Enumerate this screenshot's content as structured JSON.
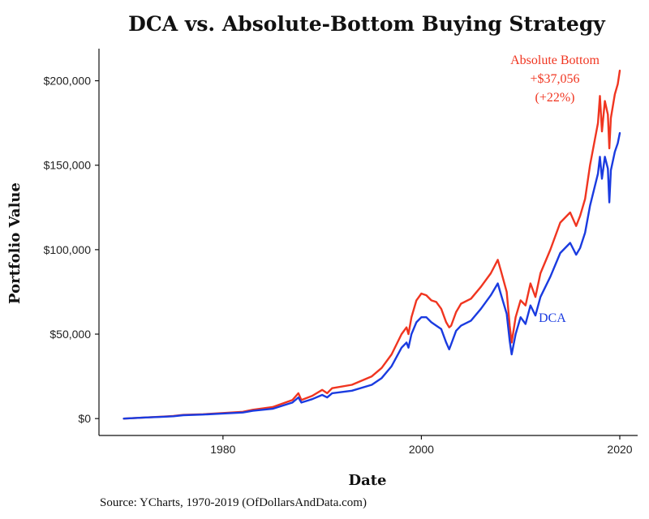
{
  "chart_data": {
    "type": "line",
    "title": "DCA vs. Absolute-Bottom Buying Strategy",
    "xlabel": "Date",
    "ylabel": "Portfolio Value",
    "source": "Source:  YCharts, 1970-2019 (OfDollarsAndData.com)",
    "xlim": [
      1967.5,
      2021.8
    ],
    "ylim": [
      -10000,
      219000
    ],
    "x_ticks": [
      {
        "value": 1980,
        "label": "1980"
      },
      {
        "value": 2000,
        "label": "2000"
      },
      {
        "value": 2020,
        "label": "2020"
      }
    ],
    "y_ticks": [
      {
        "value": 0,
        "label": "$0"
      },
      {
        "value": 50000,
        "label": "$50,000"
      },
      {
        "value": 100000,
        "label": "$100,000"
      },
      {
        "value": 150000,
        "label": "$150,000"
      },
      {
        "value": 200000,
        "label": "$200,000"
      }
    ],
    "grid": false,
    "legend": "none (direct line labels)",
    "annotations": [
      {
        "series": "Absolute Bottom",
        "lines": [
          "Absolute Bottom",
          "+$37,056",
          "(+22%)"
        ],
        "anchor": "top-right near line end"
      },
      {
        "series": "DCA",
        "lines": [
          "DCA"
        ],
        "anchor": "right of line near 2014"
      }
    ],
    "series": [
      {
        "name": "Absolute Bottom",
        "color": "#f03520",
        "points": [
          [
            1970.0,
            0
          ],
          [
            1972.0,
            600
          ],
          [
            1974.0,
            1200
          ],
          [
            1975.0,
            1500
          ],
          [
            1976.0,
            2200
          ],
          [
            1978.0,
            2600
          ],
          [
            1980.0,
            3300
          ],
          [
            1982.0,
            4000
          ],
          [
            1983.0,
            5200
          ],
          [
            1985.0,
            6800
          ],
          [
            1987.0,
            11000
          ],
          [
            1987.6,
            15000
          ],
          [
            1987.9,
            11000
          ],
          [
            1989.0,
            13500
          ],
          [
            1990.0,
            17000
          ],
          [
            1990.5,
            15000
          ],
          [
            1991.0,
            18000
          ],
          [
            1993.0,
            20000
          ],
          [
            1995.0,
            25000
          ],
          [
            1996.0,
            30000
          ],
          [
            1997.0,
            38000
          ],
          [
            1998.0,
            50000
          ],
          [
            1998.5,
            54000
          ],
          [
            1998.7,
            50000
          ],
          [
            1999.0,
            60000
          ],
          [
            1999.5,
            70000
          ],
          [
            2000.0,
            74000
          ],
          [
            2000.5,
            73000
          ],
          [
            2001.0,
            70000
          ],
          [
            2001.5,
            69000
          ],
          [
            2002.0,
            65000
          ],
          [
            2002.5,
            57000
          ],
          [
            2002.8,
            54000
          ],
          [
            2003.0,
            55000
          ],
          [
            2003.5,
            63000
          ],
          [
            2004.0,
            68000
          ],
          [
            2005.0,
            71000
          ],
          [
            2006.0,
            78000
          ],
          [
            2007.0,
            86000
          ],
          [
            2007.7,
            94000
          ],
          [
            2008.0,
            88000
          ],
          [
            2008.6,
            75000
          ],
          [
            2008.9,
            55000
          ],
          [
            2009.1,
            45000
          ],
          [
            2009.5,
            60000
          ],
          [
            2010.0,
            70000
          ],
          [
            2010.5,
            67000
          ],
          [
            2011.0,
            80000
          ],
          [
            2011.5,
            72000
          ],
          [
            2012.0,
            86000
          ],
          [
            2013.0,
            100000
          ],
          [
            2014.0,
            116000
          ],
          [
            2015.0,
            122000
          ],
          [
            2015.6,
            114000
          ],
          [
            2016.0,
            120000
          ],
          [
            2016.5,
            130000
          ],
          [
            2017.0,
            150000
          ],
          [
            2017.8,
            175000
          ],
          [
            2018.0,
            191000
          ],
          [
            2018.2,
            170000
          ],
          [
            2018.5,
            188000
          ],
          [
            2018.8,
            180000
          ],
          [
            2018.95,
            160000
          ],
          [
            2019.1,
            178000
          ],
          [
            2019.5,
            192000
          ],
          [
            2019.8,
            198000
          ],
          [
            2020.0,
            206000
          ]
        ]
      },
      {
        "name": "DCA",
        "color": "#1a3be0",
        "points": [
          [
            1970.0,
            0
          ],
          [
            1972.0,
            600
          ],
          [
            1974.0,
            1100
          ],
          [
            1975.0,
            1400
          ],
          [
            1976.0,
            2000
          ],
          [
            1978.0,
            2400
          ],
          [
            1980.0,
            3000
          ],
          [
            1982.0,
            3600
          ],
          [
            1983.0,
            4600
          ],
          [
            1985.0,
            5800
          ],
          [
            1987.0,
            9500
          ],
          [
            1987.6,
            12500
          ],
          [
            1987.9,
            9500
          ],
          [
            1989.0,
            11500
          ],
          [
            1990.0,
            14000
          ],
          [
            1990.5,
            12500
          ],
          [
            1991.0,
            15000
          ],
          [
            1993.0,
            16500
          ],
          [
            1995.0,
            20000
          ],
          [
            1996.0,
            24000
          ],
          [
            1997.0,
            31000
          ],
          [
            1998.0,
            42000
          ],
          [
            1998.5,
            45000
          ],
          [
            1998.7,
            42000
          ],
          [
            1999.0,
            50000
          ],
          [
            1999.5,
            57000
          ],
          [
            2000.0,
            60000
          ],
          [
            2000.5,
            60000
          ],
          [
            2001.0,
            57000
          ],
          [
            2001.5,
            55000
          ],
          [
            2002.0,
            53000
          ],
          [
            2002.5,
            45000
          ],
          [
            2002.8,
            41000
          ],
          [
            2003.0,
            44000
          ],
          [
            2003.5,
            52000
          ],
          [
            2004.0,
            55000
          ],
          [
            2005.0,
            58000
          ],
          [
            2006.0,
            65000
          ],
          [
            2007.0,
            73000
          ],
          [
            2007.7,
            80000
          ],
          [
            2008.0,
            74000
          ],
          [
            2008.6,
            62000
          ],
          [
            2008.9,
            46000
          ],
          [
            2009.1,
            38000
          ],
          [
            2009.5,
            50000
          ],
          [
            2010.0,
            60000
          ],
          [
            2010.5,
            56000
          ],
          [
            2011.0,
            67000
          ],
          [
            2011.5,
            61000
          ],
          [
            2012.0,
            72000
          ],
          [
            2013.0,
            84000
          ],
          [
            2014.0,
            98000
          ],
          [
            2015.0,
            104000
          ],
          [
            2015.6,
            97000
          ],
          [
            2016.0,
            101000
          ],
          [
            2016.5,
            110000
          ],
          [
            2017.0,
            126000
          ],
          [
            2017.8,
            145000
          ],
          [
            2018.0,
            155000
          ],
          [
            2018.2,
            142000
          ],
          [
            2018.5,
            155000
          ],
          [
            2018.8,
            148000
          ],
          [
            2018.95,
            128000
          ],
          [
            2019.1,
            147000
          ],
          [
            2019.5,
            158000
          ],
          [
            2019.8,
            163000
          ],
          [
            2020.0,
            169000
          ]
        ]
      }
    ]
  }
}
